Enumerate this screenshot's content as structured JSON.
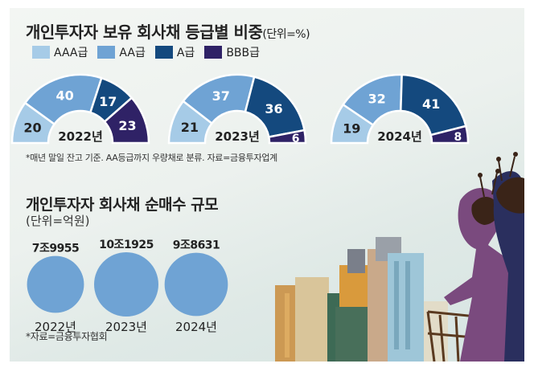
{
  "titles": {
    "top": "개인투자자 보유 회사채 등급별 비중",
    "top_unit": "(단위=%)",
    "bottom": "개인투자자 회사채 순매수 규모",
    "bottom_unit": "(단위=억원)"
  },
  "notes": {
    "top": "*매년 말일 잔고 기준. AA등급까지 우량채로 분류. 자료=금융투자업계",
    "bottom": "*자료=금융투자협회"
  },
  "colors": {
    "AAA": "#a6cbe7",
    "AA": "#6fa3d4",
    "A": "#14497e",
    "BBB": "#2f2266"
  },
  "chart_data": [
    {
      "type": "pie",
      "subtype": "half-donut",
      "legend": [
        "AAA급",
        "AA급",
        "A급",
        "BBB급"
      ],
      "legend_placement": "top-left",
      "series": [
        {
          "name": "2022년",
          "labels": [
            "AAA급",
            "AA급",
            "A급",
            "BBB급"
          ],
          "values": [
            20,
            40,
            17,
            23
          ]
        },
        {
          "name": "2023년",
          "labels": [
            "AAA급",
            "AA급",
            "A급",
            "BBB급"
          ],
          "values": [
            21,
            37,
            36,
            6
          ]
        },
        {
          "name": "2024년",
          "labels": [
            "AAA급",
            "AA급",
            "A급",
            "BBB급"
          ],
          "values": [
            19,
            32,
            41,
            8
          ]
        }
      ]
    },
    {
      "type": "bubble",
      "categories": [
        "2022년",
        "2023년",
        "2024년"
      ],
      "values": [
        79955,
        101925,
        98631
      ],
      "value_labels": [
        "7조9955",
        "10조1925",
        "9조8631"
      ]
    }
  ]
}
